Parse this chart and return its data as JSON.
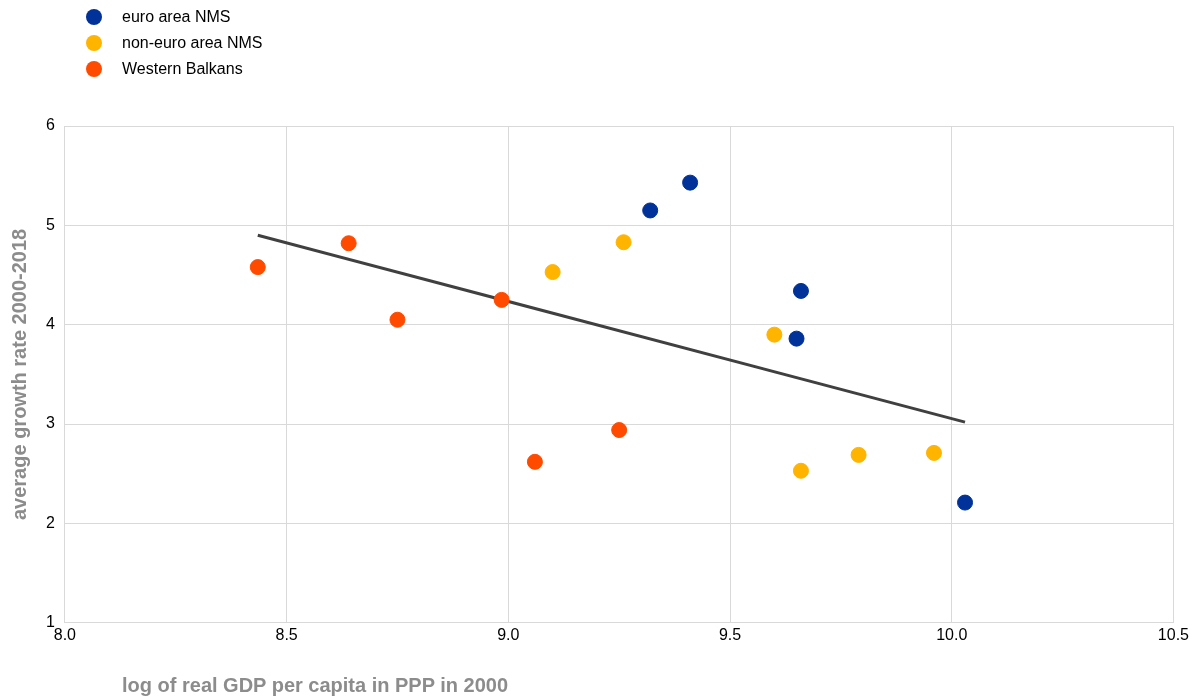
{
  "chart_data": {
    "type": "scatter",
    "xlabel": "log of real GDP per capita in PPP in 2000",
    "ylabel": "average growth rate 2000-2018",
    "series": [
      {
        "name": "euro area NMS",
        "color": "#003299",
        "x": [
          9.41,
          9.32,
          9.66,
          9.65,
          10.03
        ],
        "values": [
          5.43,
          5.15,
          4.34,
          3.86,
          2.21
        ]
      },
      {
        "name": "non-euro area NMS",
        "color": "#ffb400",
        "x": [
          9.26,
          9.1,
          9.6,
          9.66,
          9.79,
          9.96
        ],
        "values": [
          4.83,
          4.53,
          3.9,
          2.53,
          2.69,
          2.71
        ]
      },
      {
        "name": "Western Balkans",
        "color": "#ff4b00",
        "x": [
          8.435,
          8.64,
          8.75,
          8.985,
          9.06,
          9.25
        ],
        "values": [
          4.58,
          4.82,
          4.05,
          4.25,
          2.62,
          2.94
        ]
      },
      {
        "type": "line",
        "marker": "none",
        "color": "#404040",
        "x": [
          8.435,
          10.03
        ],
        "values": [
          4.9,
          3.02
        ]
      }
    ],
    "xlim": [
      8.0,
      10.5
    ],
    "xticks": [
      {
        "value": 8,
        "label": "8.0"
      },
      8.5,
      {
        "value": 9,
        "label": "9.0"
      },
      9.5,
      {
        "value": 10,
        "label": "10.0"
      },
      10.5
    ],
    "ylim": [
      1,
      6
    ],
    "yticks": [
      1,
      2,
      3,
      4,
      5,
      6
    ],
    "grid": true,
    "legend": "top left",
    "marker": "circle"
  }
}
